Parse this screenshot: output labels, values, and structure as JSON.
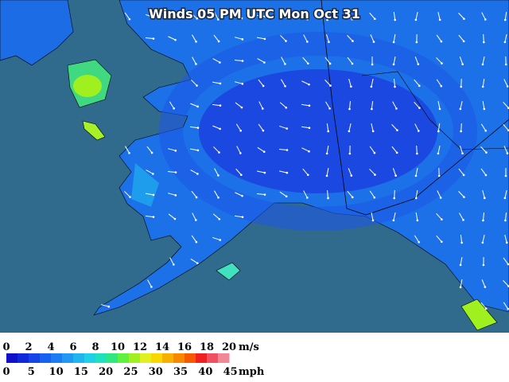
{
  "header": {
    "title": "Winds 05 PM UTC Mon Oct 31"
  },
  "legend": {
    "ms_labels": [
      0,
      2,
      4,
      6,
      8,
      10,
      12,
      14,
      16,
      18,
      20
    ],
    "ms_unit": "m/s",
    "mph_labels": [
      0,
      5,
      10,
      15,
      20,
      25,
      30,
      35,
      40,
      45
    ],
    "mph_unit": "mph",
    "colors": [
      "#1010c8",
      "#1028dc",
      "#1444e8",
      "#1860f0",
      "#1c7cf4",
      "#2098f4",
      "#20b4f0",
      "#20d0e8",
      "#20e0c0",
      "#30e880",
      "#60f040",
      "#a0f020",
      "#e0f020",
      "#f8d800",
      "#f8b000",
      "#f88800",
      "#f85800",
      "#f02020",
      "#f05060",
      "#f08898"
    ]
  }
}
